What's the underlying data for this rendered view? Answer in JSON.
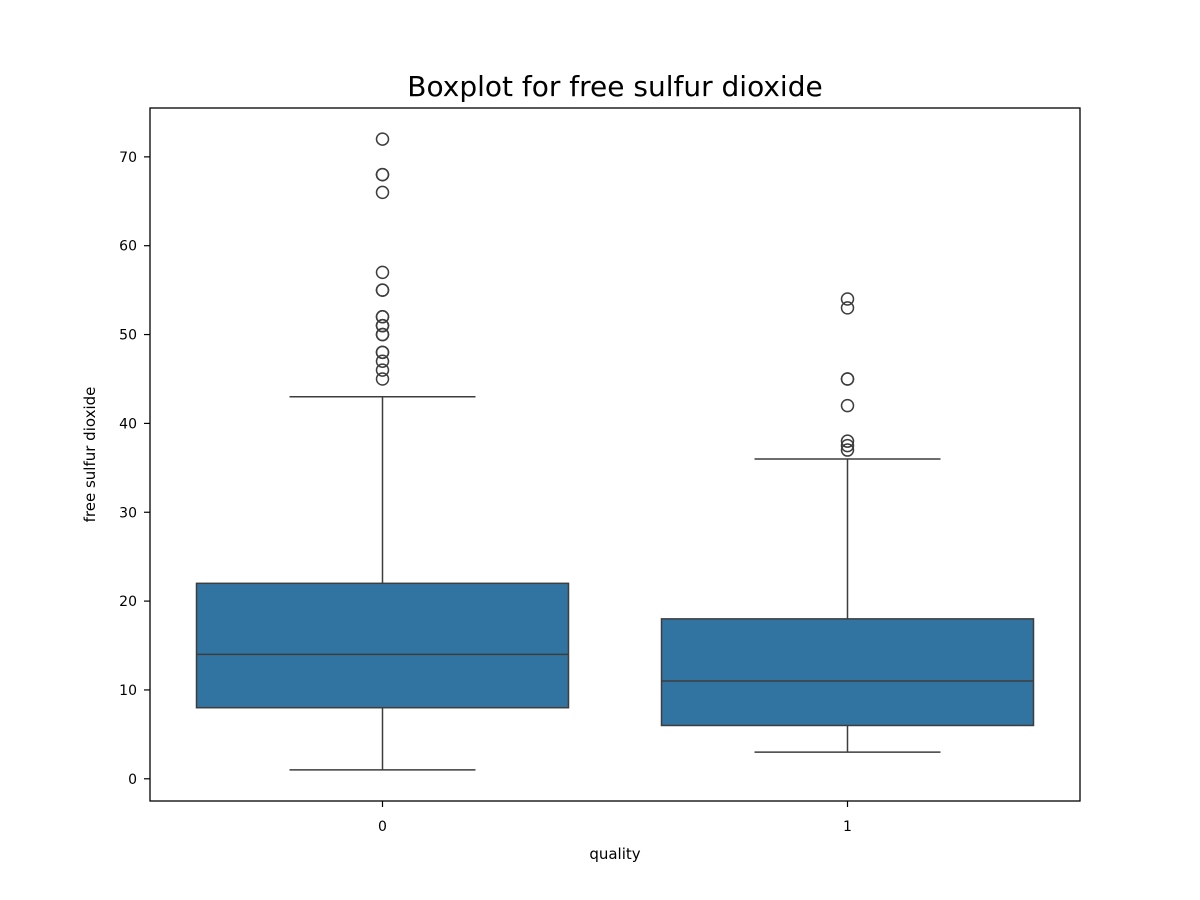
{
  "chart_data": {
    "type": "boxplot",
    "title": "Boxplot for free sulfur dioxide",
    "xlabel": "quality",
    "ylabel": "free sulfur dioxide",
    "categories": [
      "0",
      "1"
    ],
    "ylim": [
      -2.5,
      75.5
    ],
    "yticks": [
      0,
      10,
      20,
      30,
      40,
      50,
      60,
      70
    ],
    "ytick_labels": [
      "0",
      "10",
      "20",
      "30",
      "40",
      "50",
      "60",
      "70"
    ],
    "grid": false,
    "color": "#3274a1",
    "line_color": "#3d3d3d",
    "boxes": [
      {
        "category": "0",
        "whisker_low": 1,
        "q1": 8,
        "median": 14,
        "q3": 22,
        "whisker_high": 43,
        "outliers": [
          45,
          46,
          47,
          48,
          48,
          50,
          50,
          51,
          51,
          52,
          52,
          55,
          55,
          57,
          66,
          68,
          68,
          72
        ]
      },
      {
        "category": "1",
        "whisker_low": 3,
        "q1": 6,
        "median": 11,
        "q3": 18,
        "whisker_high": 36,
        "outliers": [
          37,
          37.5,
          38,
          42,
          45,
          45,
          53,
          54
        ]
      }
    ]
  }
}
